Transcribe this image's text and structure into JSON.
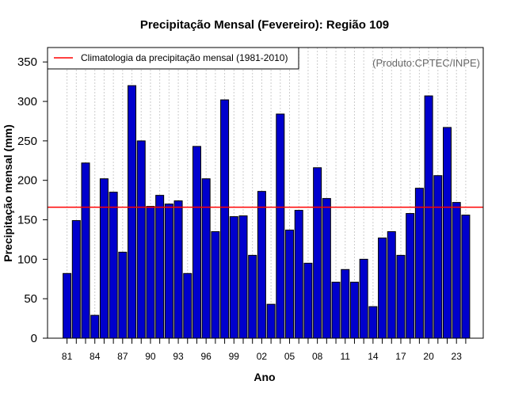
{
  "chart_data": {
    "type": "bar",
    "title": "Precipitação Mensal (Fevereiro): Região 109",
    "xlabel": "Ano",
    "ylabel": "Precipitação mensal (mm)",
    "ylim": [
      0,
      370
    ],
    "yticks": [
      0,
      50,
      100,
      150,
      200,
      250,
      300,
      350
    ],
    "x_tick_labels": [
      "81",
      "84",
      "87",
      "90",
      "93",
      "96",
      "99",
      "02",
      "05",
      "08",
      "11",
      "14",
      "17",
      "20",
      "23"
    ],
    "categories": [
      "1981",
      "1982",
      "1983",
      "1984",
      "1985",
      "1986",
      "1987",
      "1988",
      "1989",
      "1990",
      "1991",
      "1992",
      "1993",
      "1994",
      "1995",
      "1996",
      "1997",
      "1998",
      "1999",
      "2000",
      "2001",
      "2002",
      "2003",
      "2004",
      "2005",
      "2006",
      "2007",
      "2008",
      "2009",
      "2010",
      "2011",
      "2012",
      "2013",
      "2014",
      "2015",
      "2016",
      "2017",
      "2018",
      "2019",
      "2020",
      "2021",
      "2022",
      "2023",
      "2024"
    ],
    "values": [
      82,
      149,
      222,
      29,
      202,
      185,
      109,
      320,
      250,
      167,
      181,
      170,
      174,
      82,
      243,
      202,
      135,
      302,
      154,
      155,
      105,
      186,
      43,
      284,
      137,
      162,
      95,
      216,
      177,
      71,
      87,
      71,
      100,
      40,
      127,
      135,
      105,
      158,
      190,
      307,
      206,
      267,
      172,
      156
    ],
    "climatology": 166,
    "legend": {
      "label": "Climatologia da precipitação mensal (1981-2010)",
      "position": "top-left"
    },
    "source_note": "(Produto:CPTEC/INPE)",
    "grid": "vertical-dashed",
    "colors": {
      "bar_fill": "#0000cd",
      "bar_edge": "#000000",
      "climatology_line": "#ff0000",
      "grid": "#cccccc"
    }
  }
}
